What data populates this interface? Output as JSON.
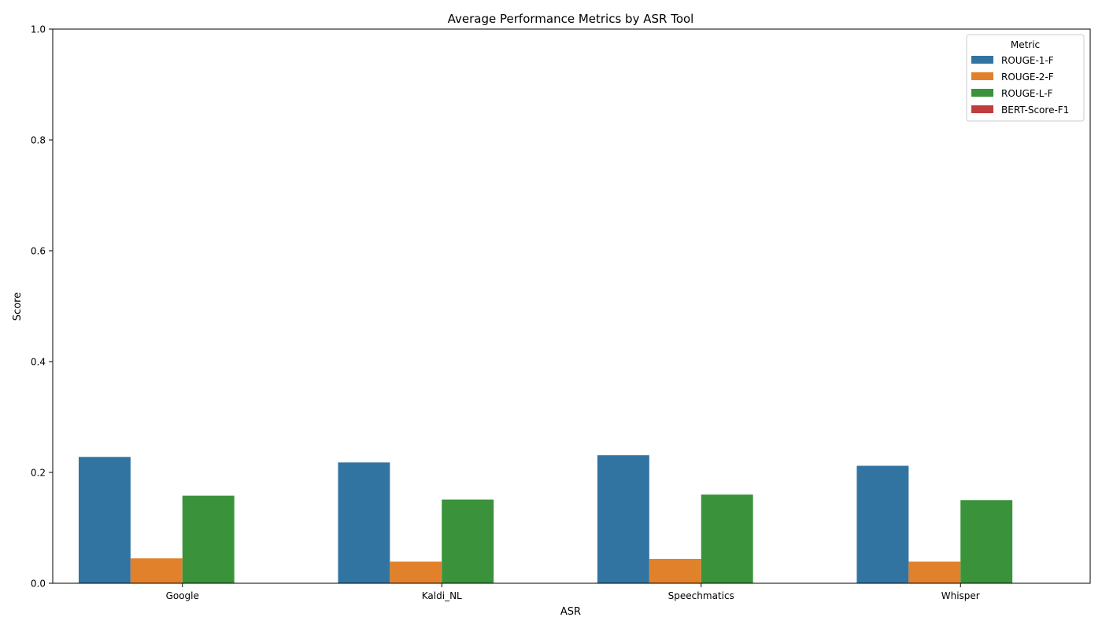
{
  "chart_data": {
    "type": "bar",
    "title": "Average Performance Metrics by ASR Tool",
    "xlabel": "ASR",
    "ylabel": "Score",
    "ylim": [
      0,
      1.0
    ],
    "yticks": [
      "0.0",
      "0.2",
      "0.4",
      "0.6",
      "0.8",
      "1.0"
    ],
    "grid": false,
    "legend": {
      "title": "Metric",
      "placement": "top-right"
    },
    "categories": [
      "Google",
      "Kaldi_NL",
      "Speechmatics",
      "Whisper"
    ],
    "series": [
      {
        "name": "ROUGE-1-F",
        "color": "#3274a1",
        "values": [
          0.228,
          0.218,
          0.231,
          0.212
        ]
      },
      {
        "name": "ROUGE-2-F",
        "color": "#e1812c",
        "values": [
          0.045,
          0.039,
          0.044,
          0.039
        ]
      },
      {
        "name": "ROUGE-L-F",
        "color": "#3a923a",
        "values": [
          0.158,
          0.151,
          0.16,
          0.15
        ]
      },
      {
        "name": "BERT-Score-F1",
        "color": "#c03d3e",
        "values": [
          0,
          0,
          0,
          0
        ]
      }
    ]
  }
}
